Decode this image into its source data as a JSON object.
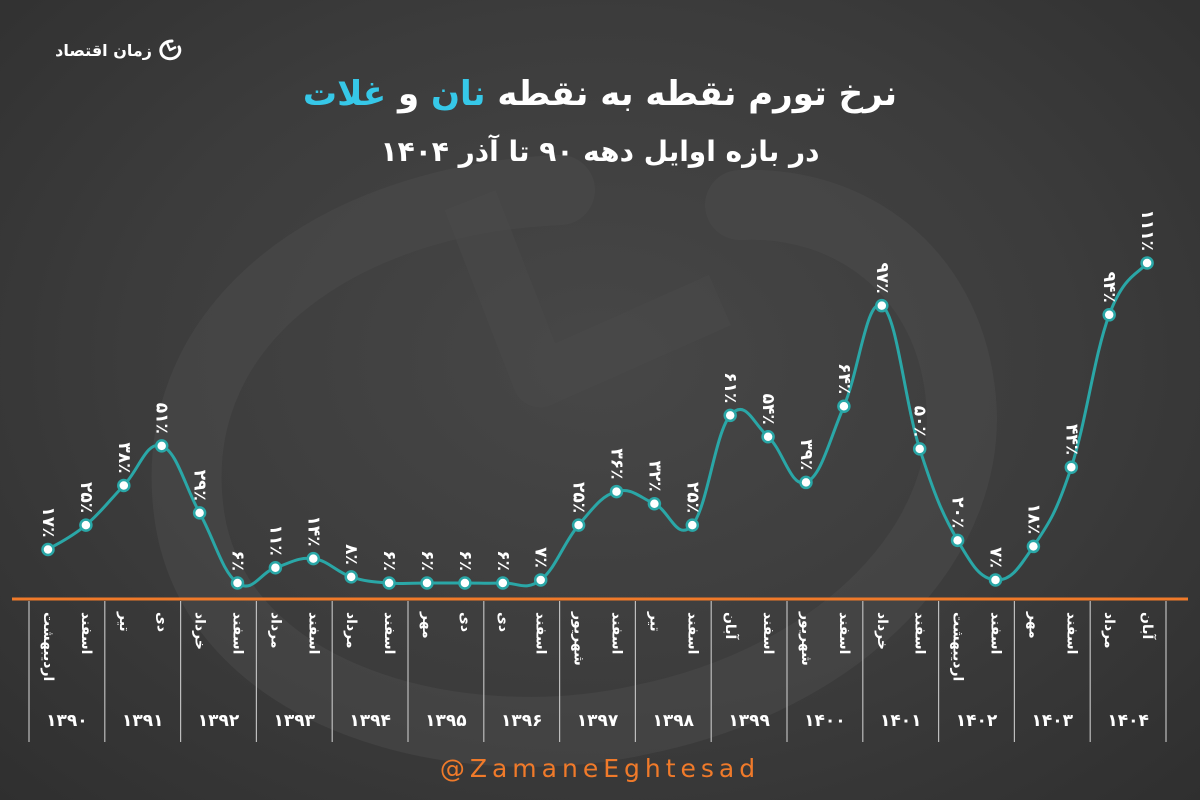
{
  "logo": {
    "text": "زمان اقتصاد",
    "icon": "zaman-logo-icon"
  },
  "title": {
    "prefix": "نرخ تورم نقطه به نقطه",
    "highlight1": "نان",
    "connector": "و",
    "highlight2": "غلات"
  },
  "subtitle": "در بازه اوایل دهه ۹۰ تا آذر ۱۴۰۴",
  "footer": "@ZamaneEghtesad",
  "colors": {
    "line": "#2aa7a7",
    "marker_fill": "#ffffff",
    "axis": "#f07a2a",
    "accent": "#36c8e8",
    "background": "#3b3b3b"
  },
  "chart_data": {
    "type": "line",
    "x": [
      "اردیبهشت",
      "اسفند",
      "تیر",
      "دی",
      "خرداد",
      "اسفند",
      "مرداد",
      "اسفند",
      "مرداد",
      "اسفند",
      "مهر",
      "دی",
      "دی",
      "اسفند",
      "شهریور",
      "اسفند",
      "تیر",
      "اسفند",
      "آبان",
      "اسفند",
      "شهریور",
      "اسفند",
      "خرداد",
      "اسفند",
      "اردیبهشت",
      "اسفند",
      "مهر",
      "اسفند",
      "مرداد",
      "آبان"
    ],
    "values": [
      17,
      25,
      38,
      51,
      29,
      6,
      11,
      14,
      8,
      6,
      6,
      6,
      6,
      7,
      25,
      36,
      32,
      25,
      61,
      54,
      39,
      64,
      97,
      50,
      20,
      7,
      18,
      44,
      94,
      111
    ],
    "value_labels": [
      "۱۷٪",
      "۲۵٪",
      "۳۸٪",
      "۵۱٪",
      "۲۹٪",
      "۶٪",
      "۱۱٪",
      "۱۴٪",
      "۸٪",
      "۶٪",
      "۶٪",
      "۶٪",
      "۶٪",
      "۷٪",
      "۲۵٪",
      "۳۶٪",
      "۳۲٪",
      "۲۵٪",
      "۶۱٪",
      "۵۴٪",
      "۳۹٪",
      "۶۴٪",
      "۹۷٪",
      "۵۰٪",
      "۲۰٪",
      "۷٪",
      "۱۸٪",
      "۴۴٪",
      "۹۴٪",
      "۱۱۱٪"
    ],
    "years": [
      "۱۳۹۰",
      "۱۳۹۱",
      "۱۳۹۲",
      "۱۳۹۳",
      "۱۳۹۴",
      "۱۳۹۵",
      "۱۳۹۶",
      "۱۳۹۷",
      "۱۳۹۸",
      "۱۳۹۹",
      "۱۴۰۰",
      "۱۴۰۱",
      "۱۴۰۲",
      "۱۴۰۳",
      "۱۴۰۴"
    ],
    "ylim": [
      0,
      111
    ],
    "grid": false,
    "smooth": true
  }
}
